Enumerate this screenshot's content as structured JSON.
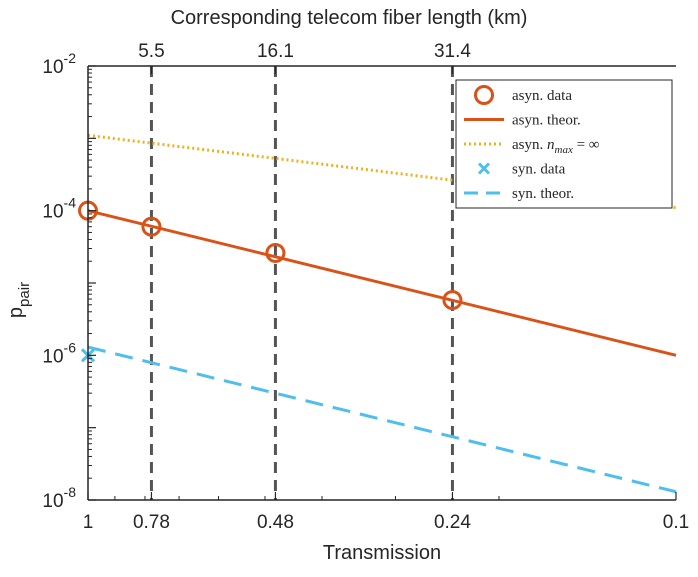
{
  "chart_data": {
    "type": "line",
    "title": "",
    "xlabel": "Transmission",
    "ylabel": "p",
    "ylabel_subscript": "pair",
    "top_xlabel": "Corresponding telecom fiber length (km)",
    "x_reversed": true,
    "xlim": [
      1,
      0.1
    ],
    "ylim": [
      1e-08,
      0.01
    ],
    "yscale": "log",
    "bottom_ticks": [
      {
        "value": 1,
        "label": "1"
      },
      {
        "value": 0.78,
        "label": "0.78"
      },
      {
        "value": 0.48,
        "label": "0.48"
      },
      {
        "value": 0.24,
        "label": "0.24"
      },
      {
        "value": 0.1,
        "label": "0.1"
      }
    ],
    "top_ticks": [
      {
        "value": 0.78,
        "label": "5.5"
      },
      {
        "value": 0.48,
        "label": "16.1"
      },
      {
        "value": 0.24,
        "label": "31.4"
      }
    ],
    "y_ticks": [
      {
        "value": 1e-08,
        "base": "10",
        "exp": "-8"
      },
      {
        "value": 1e-06,
        "base": "10",
        "exp": "-6"
      },
      {
        "value": 0.0001,
        "base": "10",
        "exp": "-4"
      },
      {
        "value": 0.01,
        "base": "10",
        "exp": "-2"
      }
    ],
    "vlines": [
      0.78,
      0.48,
      0.24
    ],
    "series": [
      {
        "name": "asyn. data",
        "kind": "markers-circle",
        "color": "#d95319",
        "x": [
          1,
          0.78,
          0.48,
          0.24
        ],
        "y": [
          0.0001,
          6e-05,
          2.6e-05,
          5.8e-06
        ]
      },
      {
        "name": "asyn. theor.",
        "kind": "solid",
        "color": "#d95319",
        "x": [
          1,
          0.1
        ],
        "y": [
          0.0001,
          1e-06
        ]
      },
      {
        "name": "asyn. nmax = ∞",
        "kind": "dotted",
        "color": "#edb120",
        "x": [
          1,
          0.1
        ],
        "y": [
          0.0011,
          0.00011
        ]
      },
      {
        "name": "syn. data",
        "kind": "markers-x",
        "color": "#4dbeee",
        "x": [
          1
        ],
        "y": [
          1e-06
        ]
      },
      {
        "name": "syn. theor.",
        "kind": "dashed",
        "color": "#4dbeee",
        "x": [
          1,
          0.1
        ],
        "y": [
          1.3e-06,
          1.3e-08
        ]
      }
    ],
    "legend": {
      "position": "top-right",
      "entries": [
        {
          "label": "asyn. data"
        },
        {
          "label": "asyn. theor."
        },
        {
          "label_prefix": "asyn. ",
          "math_n": "n",
          "math_sub": "max",
          "math_rest": " = ∞"
        },
        {
          "label": "syn. data"
        },
        {
          "label": "syn. theor."
        }
      ]
    },
    "colors": {
      "axis": "#262626",
      "vline": "#555555"
    }
  }
}
